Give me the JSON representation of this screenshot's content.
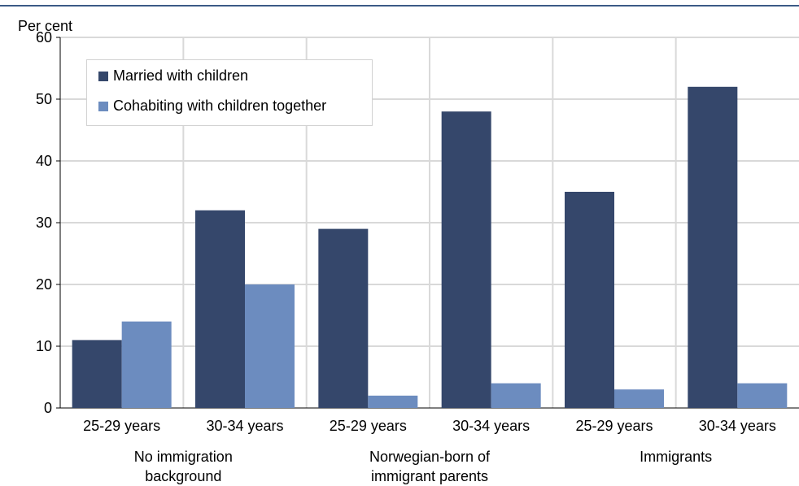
{
  "chart_data": {
    "type": "bar",
    "ylabel": "Per cent",
    "ylim": [
      0,
      60
    ],
    "yticks": [
      0,
      10,
      20,
      30,
      40,
      50,
      60
    ],
    "grid": true,
    "legend_position": "top-left",
    "categories": [
      "25-29 years",
      "30-34 years",
      "25-29 years",
      "30-34 years",
      "25-29 years",
      "30-34 years"
    ],
    "groups": [
      {
        "label_lines": [
          "No immigration",
          "background"
        ]
      },
      {
        "label_lines": [
          "Norwegian-born of",
          "immigrant parents"
        ]
      },
      {
        "label_lines": [
          "Immigrants"
        ]
      }
    ],
    "series": [
      {
        "name": "Married with children",
        "color": "#35476b",
        "values": [
          11,
          32,
          29,
          48,
          35,
          52
        ]
      },
      {
        "name": "Cohabiting with children together",
        "color": "#6c8cbf",
        "values": [
          14,
          20,
          2,
          4,
          3,
          4
        ]
      }
    ]
  }
}
